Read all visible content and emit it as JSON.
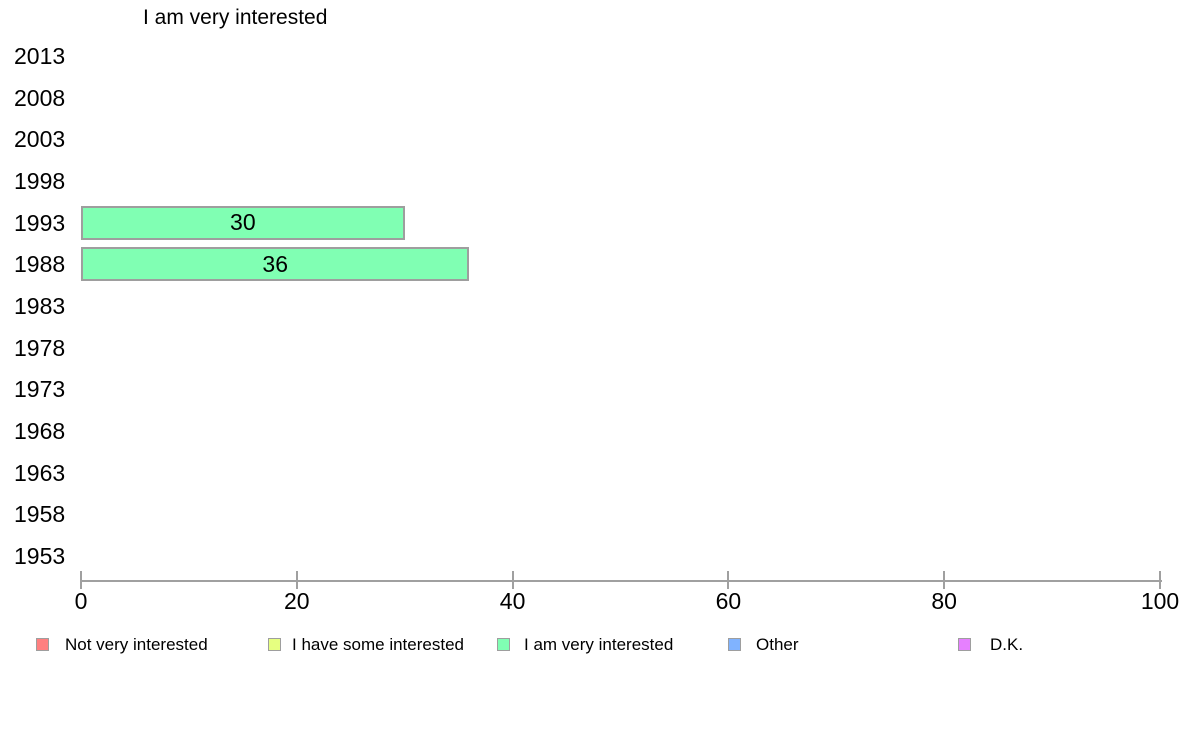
{
  "chart_data": {
    "type": "bar",
    "orientation": "horizontal",
    "title": "I am very interested",
    "categories": [
      "2013",
      "2008",
      "2003",
      "1998",
      "1993",
      "1988",
      "1983",
      "1978",
      "1973",
      "1968",
      "1963",
      "1958",
      "1953"
    ],
    "values": [
      null,
      null,
      null,
      null,
      30,
      36,
      null,
      null,
      null,
      null,
      null,
      null,
      null
    ],
    "bar_labels": [
      "",
      "",
      "",
      "",
      "30",
      "36",
      "",
      "",
      "",
      "",
      "",
      "",
      ""
    ],
    "xlabel": "",
    "ylabel": "",
    "xlim": [
      0,
      100
    ],
    "x_ticks": [
      "0",
      "20",
      "40",
      "60",
      "80",
      "100"
    ],
    "grid": false,
    "bar_color": "#80FFB3",
    "bar_border_color": "#9e9e9e",
    "axis_color": "#a0a0a0",
    "text_color": "#000000",
    "legend": {
      "position": "bottom",
      "items": [
        {
          "label": "Not very interested",
          "color": "#FF8080"
        },
        {
          "label": "I have some interested",
          "color": "#E6FF80"
        },
        {
          "label": "I am very interested",
          "color": "#80FFB3"
        },
        {
          "label": "Other",
          "color": "#80B3FF"
        },
        {
          "label": "D.K.",
          "color": "#E680FF"
        }
      ]
    }
  }
}
